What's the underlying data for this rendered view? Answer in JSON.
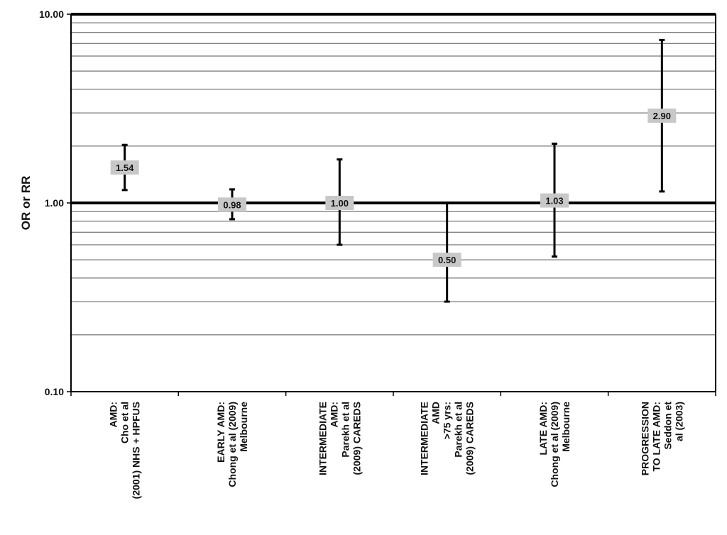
{
  "chart_data": {
    "type": "scatter",
    "title": "",
    "xlabel": "",
    "ylabel": "OR or RR",
    "y_scale": "log",
    "ylim": [
      0.1,
      10.0
    ],
    "grid": true,
    "reference_line": 1.0,
    "y_ticks": [
      {
        "value": 0.1,
        "label": "0.10"
      },
      {
        "value": 1.0,
        "label": "1.00"
      },
      {
        "value": 10.0,
        "label": "10.00"
      }
    ],
    "categories": [
      [
        "AMD:",
        "Cho et al",
        "(2001) NHS + HPFUS"
      ],
      [
        "EARLY AMD:",
        "Chong et al (2009)",
        "Melbourne"
      ],
      [
        "INTERMEDIATE",
        "AMD:",
        "Parekh et al",
        "(2009) CAREDS"
      ],
      [
        "INTERMEDIATE",
        "AMD",
        ">75 yrs:",
        "Parekh et al",
        "(2009) CAREDS"
      ],
      [
        "LATE AMD:",
        "Chong et al (2009)",
        "Melbourne"
      ],
      [
        "PROGRESSION",
        "TO LATE AMD:",
        "Seddon et",
        "al (2003)"
      ]
    ],
    "points": [
      {
        "value": 1.54,
        "label": "1.54",
        "ci_low": 1.17,
        "ci_high": 2.03
      },
      {
        "value": 0.98,
        "label": "0.98",
        "ci_low": 0.82,
        "ci_high": 1.18
      },
      {
        "value": 1.0,
        "label": "1.00",
        "ci_low": 0.6,
        "ci_high": 1.7
      },
      {
        "value": 0.5,
        "label": "0.50",
        "ci_low": 0.3,
        "ci_high": 1.0
      },
      {
        "value": 1.03,
        "label": "1.03",
        "ci_low": 0.52,
        "ci_high": 2.06
      },
      {
        "value": 2.9,
        "label": "2.90",
        "ci_low": 1.15,
        "ci_high": 7.3
      }
    ],
    "colors": {
      "line": "#000000",
      "label_box": "#c8c8c8",
      "grid": "#555555"
    }
  }
}
